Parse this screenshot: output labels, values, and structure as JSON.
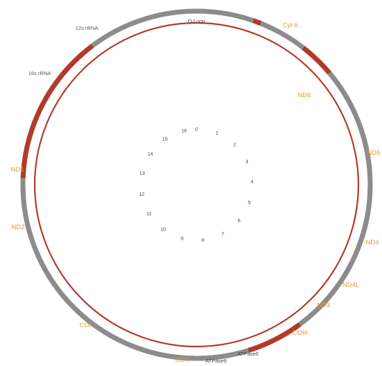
{
  "colors": {
    "gene_segment": "#b33a2a",
    "spacer_segment": "#8c8c8c",
    "inner_ring": "#b33a2a",
    "gene_label": "#e39a3c",
    "rna_label": "#555555",
    "dloop_label": "#444444",
    "kb_label": "#444444"
  },
  "genes": [
    {
      "id": "dloop",
      "label": "D-Loop",
      "start": 0.88,
      "end": 1.0,
      "color_key": "gene_segment",
      "label_color_key": "dloop_label"
    },
    {
      "id": "cytb",
      "label": "Cyt b",
      "start": 1.0,
      "end": 1.15,
      "color_key": "spacer_segment",
      "label_color_key": "gene_label"
    },
    {
      "id": "nd6",
      "label": "ND6",
      "start": 1.75,
      "end": 2.3,
      "color_key": "gene_segment",
      "label_color_key": "gene_label"
    },
    {
      "id": "nd5",
      "label": "ND5",
      "start": 2.3,
      "end": 4.0,
      "color_key": "spacer_segment",
      "label_color_key": "gene_label"
    },
    {
      "id": "nd4",
      "label": "ND4",
      "start": 4.12,
      "end": 5.3,
      "color_key": "spacer_segment",
      "label_color_key": "gene_label"
    },
    {
      "id": "nd4l",
      "label": "ND4L",
      "start": 5.4,
      "end": 5.75,
      "color_key": "spacer_segment",
      "label_color_key": "gene_label"
    },
    {
      "id": "nd3",
      "label": "ND3",
      "start": 5.83,
      "end": 6.0,
      "color_key": "spacer_segment",
      "label_color_key": "gene_label"
    },
    {
      "id": "coiii",
      "label": "COIII",
      "start": 6.0,
      "end": 6.6,
      "color_key": "spacer_segment",
      "label_color_key": "gene_label"
    },
    {
      "id": "atpase6",
      "label": "ATPase6",
      "start": 6.62,
      "end": 7.35,
      "color_key": "gene_segment",
      "label_color_key": "dloop_label"
    },
    {
      "id": "atpase8",
      "label": "ATPase8",
      "start": 7.35,
      "end": 7.5,
      "color_key": "gene_segment",
      "label_color_key": "dloop_label"
    },
    {
      "id": "coii",
      "label": "COII",
      "start": 7.5,
      "end": 8.3,
      "color_key": "spacer_segment",
      "label_color_key": "gene_label"
    },
    {
      "id": "coi",
      "label": "COI",
      "start": 8.3,
      "end": 10.0,
      "color_key": "spacer_segment",
      "label_color_key": "gene_label"
    },
    {
      "id": "nd2",
      "label": "ND2",
      "start": 10.25,
      "end": 11.45,
      "color_key": "spacer_segment",
      "label_color_key": "gene_label"
    },
    {
      "id": "nd1",
      "label": "ND1",
      "start": 11.6,
      "end": 12.45,
      "color_key": "spacer_segment",
      "label_color_key": "gene_label"
    },
    {
      "id": "rrna16s",
      "label": "16s rRNA",
      "start": 12.55,
      "end": 14.1,
      "color_key": "gene_segment",
      "label_color_key": "rna_label"
    },
    {
      "id": "rrna12s",
      "label": "12s rRNA",
      "start": 14.1,
      "end": 14.9,
      "color_key": "gene_segment",
      "label_color_key": "rna_label"
    }
  ],
  "kb_ticks": [
    "0",
    "1",
    "2",
    "3",
    "4",
    "5",
    "6",
    "7",
    "8",
    "9",
    "10",
    "11",
    "12",
    "13",
    "14",
    "15",
    "16"
  ]
}
